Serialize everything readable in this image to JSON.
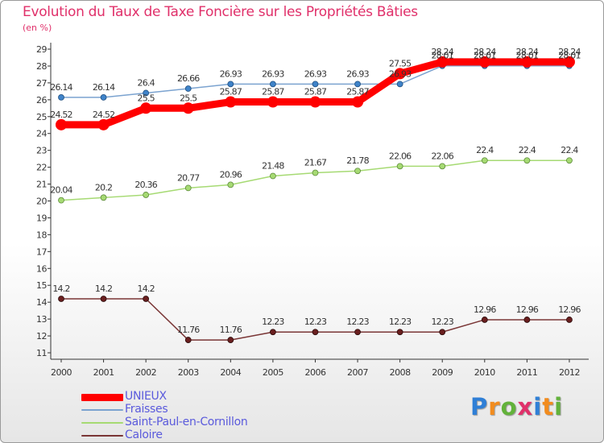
{
  "chart_data": {
    "type": "line",
    "title": "Evolution du Taux de Taxe Foncière sur les Propriétés Bâties",
    "ylabel": "(en %)",
    "xlabel": "",
    "ylim": [
      11,
      29
    ],
    "yticks": [
      11,
      12,
      13,
      14,
      15,
      16,
      17,
      18,
      19,
      20,
      21,
      22,
      23,
      24,
      25,
      26,
      27,
      28,
      29
    ],
    "categories": [
      "2000",
      "2001",
      "2002",
      "2003",
      "2004",
      "2005",
      "2006",
      "2007",
      "2008",
      "2009",
      "2010",
      "2011",
      "2012"
    ],
    "series": [
      {
        "name": "UNIEUX",
        "color": "#ff0000",
        "values": [
          24.52,
          24.52,
          25.5,
          25.5,
          25.87,
          25.87,
          25.87,
          25.87,
          27.55,
          28.24,
          28.24,
          28.24,
          28.24
        ],
        "labels": [
          "24.52",
          "24.52",
          "25.5",
          "25.5",
          "25.87",
          "25.87",
          "25.87",
          "25.87",
          "27.55",
          "28.24",
          "28.24",
          "28.24",
          "28.24"
        ]
      },
      {
        "name": "Fraisses",
        "color": "#7ba3d0",
        "values": [
          26.14,
          26.14,
          26.4,
          26.66,
          26.93,
          26.93,
          26.93,
          26.93,
          26.93,
          28.01,
          28.01,
          28.01,
          28.01
        ],
        "labels": [
          "26.14",
          "26.14",
          "26.4",
          "26.66",
          "26.93",
          "26.93",
          "26.93",
          "26.93",
          "26.93",
          "28.01",
          "28.01",
          "28.01",
          "28.01"
        ]
      },
      {
        "name": "Saint-Paul-en-Cornillon",
        "color": "#a6da73",
        "values": [
          20.04,
          20.2,
          20.36,
          20.77,
          20.96,
          21.48,
          21.67,
          21.78,
          22.06,
          22.06,
          22.4,
          22.4,
          22.4
        ],
        "labels": [
          "20.04",
          "20.2",
          "20.36",
          "20.77",
          "20.96",
          "21.48",
          "21.67",
          "21.78",
          "22.06",
          "22.06",
          "22.4",
          "22.4",
          "22.4"
        ]
      },
      {
        "name": "Caloire",
        "color": "#7a3636",
        "values": [
          14.2,
          14.2,
          14.2,
          11.76,
          11.76,
          12.23,
          12.23,
          12.23,
          12.23,
          12.23,
          12.96,
          12.96,
          12.96
        ],
        "labels": [
          "14.2",
          "14.2",
          "14.2",
          "11.76",
          "11.76",
          "12.23",
          "12.23",
          "12.23",
          "12.23",
          "12.23",
          "12.96",
          "12.96",
          "12.96"
        ]
      }
    ],
    "legend_position": "bottom-left",
    "grid": false
  },
  "brand": {
    "letters": [
      "P",
      "r",
      "o",
      "x",
      "i",
      "t",
      "i"
    ],
    "colors": [
      "#2f7fd6",
      "#f28c1e",
      "#62b23a",
      "#e0306a",
      "#2f7fd6",
      "#f28c1e",
      "#62b23a"
    ]
  }
}
